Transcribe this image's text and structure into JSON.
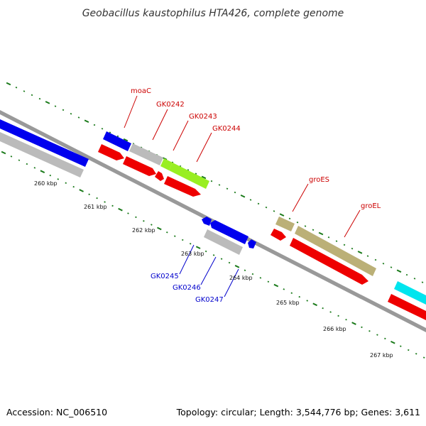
{
  "title": "Geobacillus kaustophilus HTA426, complete genome",
  "footer": {
    "accession": "Accession: NC_006510",
    "summary": "Topology: circular; Length: 3,544,776 bp; Genes: 3,611"
  },
  "colors": {
    "forward_label": "#cc0000",
    "reverse_label": "#0000cc",
    "tick": "#1a7a1a",
    "backbone": "#888888"
  },
  "scale_labels": [
    "260 kbp",
    "261 kbp",
    "262 kbp",
    "263 kbp",
    "264 kbp",
    "265 kbp",
    "266 kbp",
    "267 kbp"
  ],
  "genes": [
    {
      "name": "moaC",
      "strand": "forward",
      "color": "#cc0000"
    },
    {
      "name": "GK0242",
      "strand": "forward",
      "color": "#cc0000"
    },
    {
      "name": "GK0243",
      "strand": "forward",
      "color": "#cc0000"
    },
    {
      "name": "GK0244",
      "strand": "forward",
      "color": "#cc0000"
    },
    {
      "name": "groES",
      "strand": "forward",
      "color": "#cc0000"
    },
    {
      "name": "groEL",
      "strand": "forward",
      "color": "#cc0000"
    },
    {
      "name": "GK0245",
      "strand": "reverse",
      "color": "#0000cc"
    },
    {
      "name": "GK0246",
      "strand": "reverse",
      "color": "#0000cc"
    },
    {
      "name": "GK0247",
      "strand": "reverse",
      "color": "#0000cc"
    }
  ],
  "feature_colors": {
    "cog_blue": "#0000ee",
    "cog_grey": "#bbbbbb",
    "cog_green": "#99ee22",
    "cog_khaki": "#bbb077",
    "cog_cyan": "#00e5ee",
    "cds_red": "#ee0000"
  }
}
